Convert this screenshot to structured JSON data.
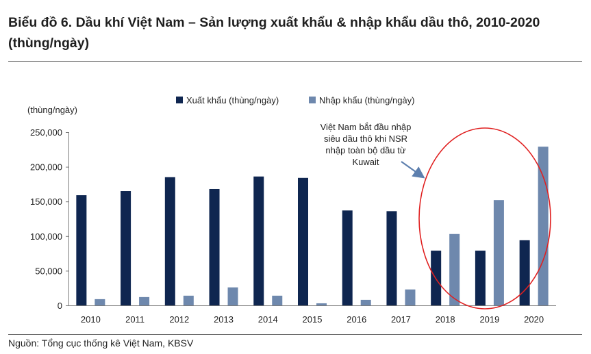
{
  "title": "Biểu đồ 6. Dầu khí Việt Nam – Sản lượng xuất khẩu & nhập khẩu dầu thô, 2010-2020 (thùng/ngày)",
  "source": "Nguồn: Tổng cục thống kê Việt Nam, KBSV",
  "colors": {
    "export": "#0f2650",
    "import": "#6e88ad",
    "ellipse": "#e02020",
    "arrow": "#5d7fae"
  },
  "chart_data": {
    "type": "bar",
    "categories": [
      "2010",
      "2011",
      "2012",
      "2013",
      "2014",
      "2015",
      "2016",
      "2017",
      "2018",
      "2019",
      "2020"
    ],
    "series": [
      {
        "name": "Xuất khẩu (thùng/ngày)",
        "values": [
          159000,
          165000,
          185000,
          168000,
          186000,
          184000,
          137000,
          136000,
          79000,
          79000,
          94000
        ]
      },
      {
        "name": "Nhập khẩu (thùng/ngày)",
        "values": [
          9000,
          12000,
          14000,
          26000,
          14000,
          3000,
          8000,
          23000,
          103000,
          152000,
          229000
        ]
      }
    ],
    "ylabel": "(thùng/ngày)",
    "ylim": [
      0,
      250000
    ],
    "yticks": [
      0,
      50000,
      100000,
      150000,
      200000,
      250000
    ],
    "ytick_labels": [
      "0",
      "50,000",
      "100,000",
      "150,000",
      "200,000",
      "250,000"
    ],
    "grid": false,
    "legend_position": "top-center",
    "annotation": {
      "lines": [
        "Việt Nam bắt đầu nhập",
        "siêu dầu thô khi NSR",
        "nhập toàn bộ dầu từ",
        "Kuwait"
      ],
      "highlight": [
        "2018",
        "2019",
        "2020"
      ]
    }
  }
}
